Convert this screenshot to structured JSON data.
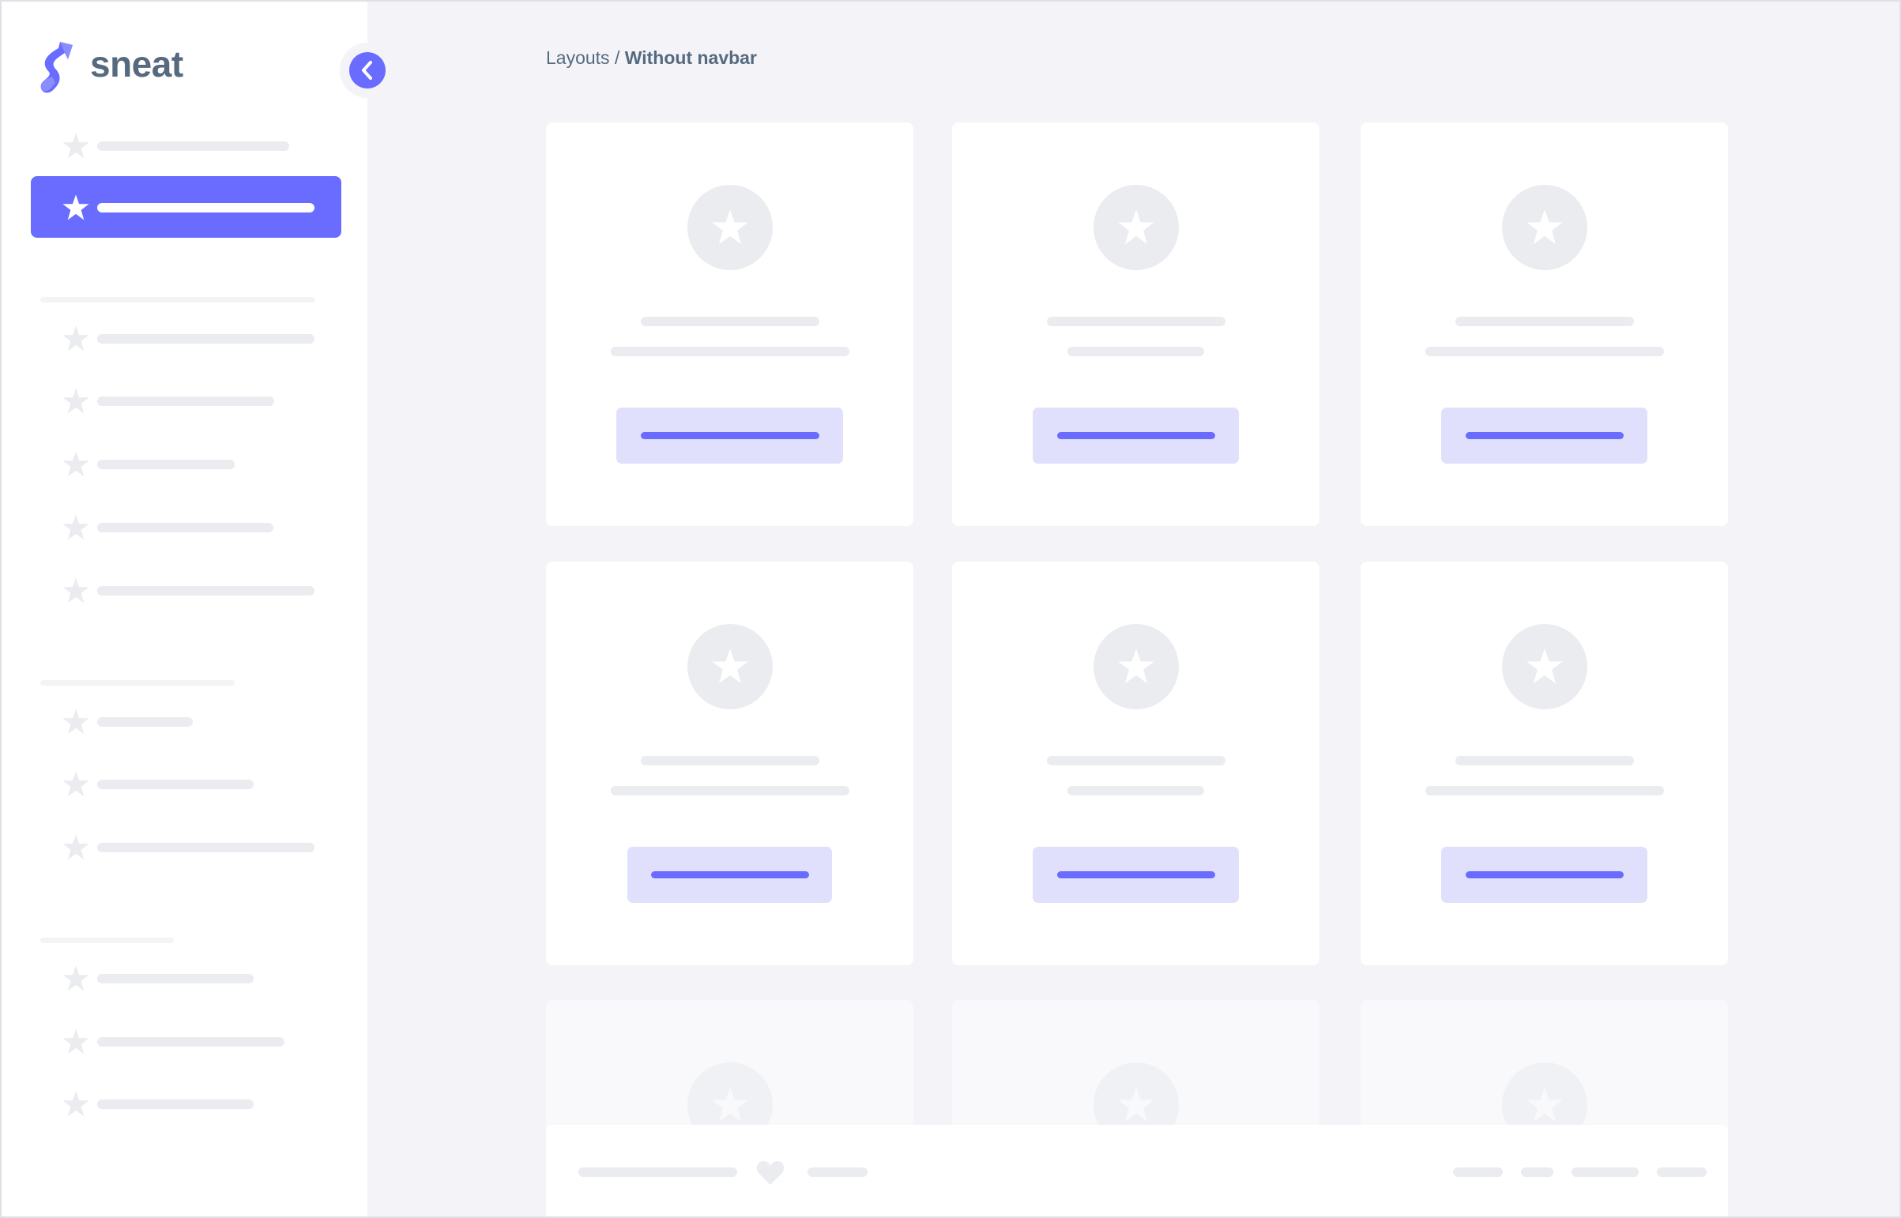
{
  "app": {
    "logo_text": "sneat",
    "logo_icon": "sneat-s-logo"
  },
  "breadcrumb": {
    "parent": "Layouts",
    "separator": " / ",
    "current": "Without navbar"
  },
  "colors": {
    "primary": "#696cff",
    "primary_light": "#e0e0fc",
    "placeholder": "#ebecf0",
    "background": "#f4f4f8",
    "text": "#566a7f"
  },
  "sidebar": {
    "toggle_icon": "chevron-left-icon",
    "item_icon": "star-icon",
    "active_index": 1
  },
  "cards": {
    "icon": "star-icon",
    "rows": 3,
    "columns": 3
  },
  "footer": {
    "icon": "heart-icon"
  }
}
